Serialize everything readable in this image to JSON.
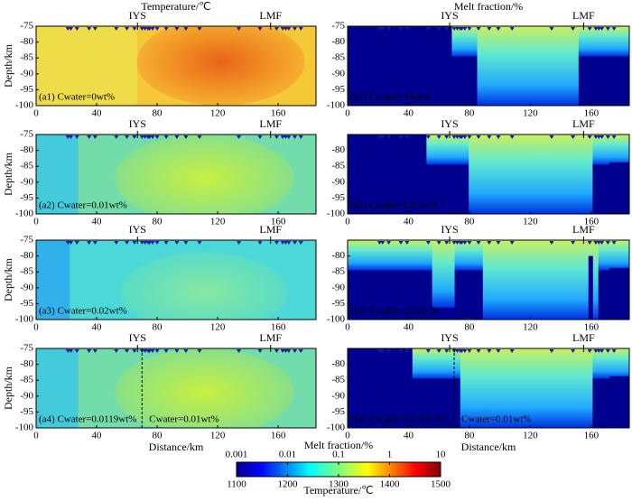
{
  "chart_data": [
    {
      "type": "heatmap",
      "field": "temperature",
      "title": "Temperature/℃",
      "label": "(a1) Cwater=0wt%",
      "ylabel": "Depth/km",
      "xlim": [
        0,
        185
      ],
      "ylim": [
        -100,
        -75
      ],
      "xticks": [
        0,
        40,
        80,
        120,
        160
      ],
      "yticks": [
        -100,
        -95,
        -90,
        -85,
        -80,
        -75
      ]
    },
    {
      "type": "heatmap",
      "field": "melt",
      "title": "Melt fraction/%",
      "label": "(b1) Cwater= 0wt%",
      "xlim": [
        0,
        185
      ],
      "ylim": [
        -100,
        -75
      ],
      "xticks": [
        0,
        40,
        80,
        120,
        160
      ],
      "yticks": [
        -100,
        -95,
        -90,
        -85,
        -80,
        -75
      ]
    },
    {
      "type": "heatmap",
      "field": "temperature",
      "label": "(a2) Cwater=0.01wt%",
      "ylabel": "Depth/km",
      "xlim": [
        0,
        185
      ],
      "ylim": [
        -100,
        -75
      ],
      "xticks": [
        0,
        40,
        80,
        120,
        160
      ],
      "yticks": [
        -100,
        -95,
        -90,
        -85,
        -80,
        -75
      ]
    },
    {
      "type": "heatmap",
      "field": "melt",
      "label": "(b2) Cwater=0.01wt%",
      "xlim": [
        0,
        185
      ],
      "ylim": [
        -100,
        -75
      ],
      "xticks": [
        0,
        40,
        80,
        120,
        160
      ],
      "yticks": [
        -100,
        -95,
        -90,
        -85,
        -80
      ]
    },
    {
      "type": "heatmap",
      "field": "temperature",
      "label": "(a3) Cwater=0.02wt%",
      "ylabel": "Depth/km",
      "xlim": [
        0,
        185
      ],
      "ylim": [
        -100,
        -75
      ],
      "xticks": [
        0,
        40,
        80,
        120,
        160
      ],
      "yticks": [
        -100,
        -95,
        -90,
        -85,
        -80,
        -75
      ]
    },
    {
      "type": "heatmap",
      "field": "melt",
      "label": "(b3) Cwater=0.02wt%",
      "xlim": [
        0,
        185
      ],
      "ylim": [
        -100,
        -75
      ],
      "xticks": [
        0,
        40,
        80,
        120,
        160
      ],
      "yticks": [
        -100,
        -95,
        -90,
        -85,
        -80
      ]
    },
    {
      "type": "heatmap",
      "field": "temperature",
      "label": "(a4) Cwater=0.0119wt%",
      "ylabel": "Depth/km",
      "xlabel": "Distance/km",
      "xlim": [
        0,
        185
      ],
      "ylim": [
        -100,
        -75
      ],
      "xticks": [
        0,
        40,
        80,
        120,
        160
      ],
      "yticks": [
        -100,
        -95,
        -90,
        -85,
        -80,
        -75
      ],
      "divider": 70,
      "divider_label": "Cwater=0.01wt%"
    },
    {
      "type": "heatmap",
      "field": "melt",
      "label": "(b4) Cwater=0.0119wt%",
      "xlabel": "Distance/km",
      "xlim": [
        0,
        185
      ],
      "ylim": [
        -100,
        -75
      ],
      "xticks": [
        0,
        40,
        80,
        120,
        160
      ],
      "yticks": [
        -100,
        -95,
        -90,
        -85,
        -80
      ],
      "divider": 70,
      "divider_label": "Cwater=0.01wt%"
    },
    {
      "type": "colorbar",
      "x2label": "Melt fraction/%",
      "xlabel": "Temperature/℃",
      "x2lim": [
        0.001,
        10
      ],
      "x2log": true,
      "x2ticks": [
        0.001,
        0.01,
        0.1,
        1,
        10
      ],
      "xlim": [
        1100,
        1500
      ],
      "xticks": [
        1100,
        1200,
        1300,
        1400,
        1500
      ]
    }
  ],
  "faults": [
    {
      "name": "IYS",
      "x": 67
    },
    {
      "name": "LMF",
      "x": 155
    }
  ],
  "stations": [
    21,
    23,
    27,
    35,
    39,
    53,
    60,
    65,
    70,
    72,
    74,
    75,
    77,
    80,
    86,
    93,
    99,
    108,
    134,
    148,
    159,
    163,
    165,
    167,
    171,
    175
  ],
  "station_color": "#1a1aa0"
}
